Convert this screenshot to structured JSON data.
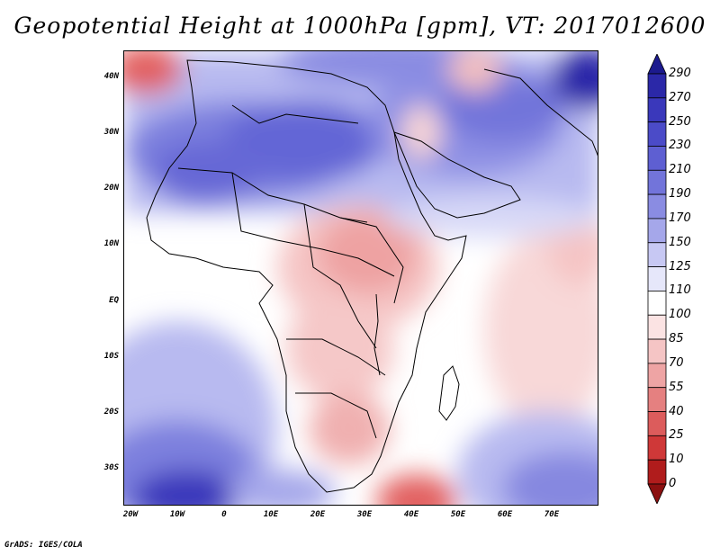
{
  "title": "Geopotential Height at 1000hPa [gpm], VT: 2017012600",
  "footer": "GrADS: IGES/COLA",
  "map": {
    "lat_labels": [
      "40N",
      "30N",
      "20N",
      "10N",
      "EQ",
      "10S",
      "20S",
      "30S"
    ],
    "lon_labels": [
      "20W",
      "10W",
      "0",
      "10E",
      "20E",
      "30E",
      "40E",
      "50E",
      "60E",
      "70E"
    ]
  },
  "colorbar": {
    "labels": [
      "290",
      "270",
      "250",
      "230",
      "210",
      "190",
      "170",
      "150",
      "125",
      "110",
      "100",
      "85",
      "70",
      "55",
      "40",
      "25",
      "10",
      "0"
    ],
    "colors": [
      "#1c1a8e",
      "#2b28a8",
      "#3a38bb",
      "#4b4bc8",
      "#5e5fd2",
      "#7274da",
      "#8a8ce2",
      "#a5a7ea",
      "#c7c8f3",
      "#e6e7fa",
      "#ffffff",
      "#fbe3e3",
      "#f5c5c5",
      "#eea4a4",
      "#e58080",
      "#dc5c5c",
      "#cf3838",
      "#b01c1c",
      "#8b1010"
    ]
  }
}
